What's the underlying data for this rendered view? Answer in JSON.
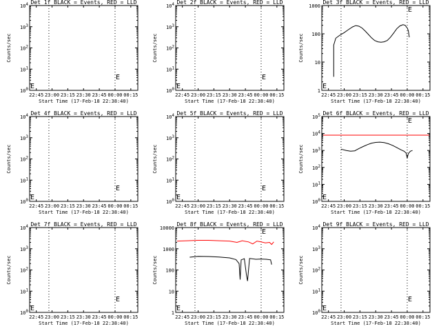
{
  "xlabel": "Start Time (17-Feb-18 22:38:40)",
  "ylabel": "Counts/sec",
  "x_ticks": [
    "22:45",
    "23:00",
    "23:15",
    "23:30",
    "23:45",
    "00:00",
    "00:15"
  ],
  "x_range": [
    "22:38:40",
    "00:21:40"
  ],
  "vlines": [
    "22:57",
    "00:00"
  ],
  "colors": {
    "events": "#000000",
    "lld": "#ff0000",
    "axes": "#000000",
    "background": "#ffffff"
  },
  "chart_data": [
    {
      "type": "line",
      "title": "Det 1f BLACK = Events, RED = LLD",
      "ylog": true,
      "ylim": [
        1,
        10000
      ],
      "y_ticks": [
        "10^0",
        "10^1",
        "10^2",
        "10^3",
        "10^4"
      ],
      "marker": "E",
      "series": []
    },
    {
      "type": "line",
      "title": "Det 2f BLACK = Events, RED = LLD",
      "ylog": true,
      "ylim": [
        1,
        10000
      ],
      "y_ticks": [
        "10^0",
        "10^1",
        "10^2",
        "10^3",
        "10^4"
      ],
      "marker": "E",
      "series": []
    },
    {
      "type": "line",
      "title": "Det 3f BLACK = Events, RED = LLD",
      "ylog": true,
      "ylim": [
        1,
        1000
      ],
      "y_ticks": [
        "1",
        "10",
        "100",
        "1000"
      ],
      "marker": "E",
      "series": [
        {
          "color": "black",
          "points": [
            [
              "22:50",
              3
            ],
            [
              "22:50",
              40
            ],
            [
              "22:52",
              70
            ],
            [
              "22:56",
              90
            ],
            [
              "23:00",
              110
            ],
            [
              "23:04",
              140
            ],
            [
              "23:08",
              175
            ],
            [
              "23:11",
              195
            ],
            [
              "23:14",
              185
            ],
            [
              "23:17",
              160
            ],
            [
              "23:20",
              125
            ],
            [
              "23:23",
              95
            ],
            [
              "23:26",
              72
            ],
            [
              "23:29",
              58
            ],
            [
              "23:32",
              52
            ],
            [
              "23:35",
              50
            ],
            [
              "23:38",
              52
            ],
            [
              "23:41",
              58
            ],
            [
              "23:44",
              75
            ],
            [
              "23:47",
              105
            ],
            [
              "23:50",
              150
            ],
            [
              "23:53",
              190
            ],
            [
              "23:56",
              210
            ],
            [
              "23:58",
              200
            ],
            [
              "00:00",
              160
            ],
            [
              "00:01",
              130
            ],
            [
              "00:02",
              75
            ]
          ]
        }
      ]
    },
    {
      "type": "line",
      "title": "Det 4f BLACK = Events, RED = LLD",
      "ylog": true,
      "ylim": [
        1,
        10000
      ],
      "y_ticks": [
        "10^0",
        "10^1",
        "10^2",
        "10^3",
        "10^4"
      ],
      "marker": "E",
      "series": []
    },
    {
      "type": "line",
      "title": "Det 5f BLACK = Events, RED = LLD",
      "ylog": true,
      "ylim": [
        1,
        10000
      ],
      "y_ticks": [
        "10^0",
        "10^1",
        "10^2",
        "10^3",
        "10^4"
      ],
      "marker": "E",
      "series": []
    },
    {
      "type": "line",
      "title": "Det 6f BLACK = Events, RED = LLD",
      "ylog": true,
      "ylim": [
        1,
        100000
      ],
      "y_ticks": [
        "10^0",
        "10^1",
        "10^2",
        "10^3",
        "10^4",
        "10^5"
      ],
      "marker": "E",
      "series": [
        {
          "color": "red",
          "points": [
            [
              "22:40",
              8000
            ],
            [
              "00:21",
              8000
            ]
          ]
        },
        {
          "color": "black",
          "points": [
            [
              "22:57",
              1200
            ],
            [
              "23:02",
              1000
            ],
            [
              "23:06",
              900
            ],
            [
              "23:10",
              950
            ],
            [
              "23:14",
              1300
            ],
            [
              "23:18",
              1700
            ],
            [
              "23:22",
              2200
            ],
            [
              "23:26",
              2700
            ],
            [
              "23:30",
              3000
            ],
            [
              "23:34",
              3100
            ],
            [
              "23:38",
              2900
            ],
            [
              "23:42",
              2500
            ],
            [
              "23:46",
              2000
            ],
            [
              "23:50",
              1500
            ],
            [
              "23:54",
              1100
            ],
            [
              "23:57",
              900
            ],
            [
              "23:59",
              700
            ],
            [
              "00:00",
              350
            ],
            [
              "00:01",
              650
            ],
            [
              "00:03",
              900
            ],
            [
              "00:05",
              1000
            ]
          ]
        }
      ]
    },
    {
      "type": "line",
      "title": "Det 7f BLACK = Events, RED = LLD",
      "ylog": true,
      "ylim": [
        1,
        10000
      ],
      "y_ticks": [
        "10^0",
        "10^1",
        "10^2",
        "10^3",
        "10^4"
      ],
      "marker": "E",
      "series": []
    },
    {
      "type": "line",
      "title": "Det 8f BLACK = Events, RED = LLD",
      "ylog": true,
      "ylim": [
        1,
        10000
      ],
      "y_ticks": [
        "1",
        "10",
        "100",
        "1000",
        "10000"
      ],
      "marker": "E",
      "series": [
        {
          "color": "red",
          "points": [
            [
              "22:40",
              2300
            ],
            [
              "22:50",
              2400
            ],
            [
              "23:00",
              2500
            ],
            [
              "23:10",
              2500
            ],
            [
              "23:20",
              2400
            ],
            [
              "23:30",
              2300
            ],
            [
              "23:37",
              2000
            ],
            [
              "23:42",
              2400
            ],
            [
              "23:48",
              2100
            ],
            [
              "23:52",
              1700
            ],
            [
              "23:56",
              2300
            ],
            [
              "00:00",
              2100
            ],
            [
              "00:04",
              1900
            ],
            [
              "00:08",
              2000
            ],
            [
              "00:10",
              1600
            ],
            [
              "00:12",
              2100
            ]
          ]
        },
        {
          "color": "black",
          "points": [
            [
              "22:52",
              400
            ],
            [
              "23:00",
              440
            ],
            [
              "23:10",
              430
            ],
            [
              "23:20",
              410
            ],
            [
              "23:30",
              370
            ],
            [
              "23:36",
              310
            ],
            [
              "23:39",
              200
            ],
            [
              "23:40",
              35
            ],
            [
              "23:41",
              300
            ],
            [
              "23:44",
              340
            ],
            [
              "23:46",
              60
            ],
            [
              "23:47",
              30
            ],
            [
              "23:49",
              350
            ],
            [
              "23:55",
              320
            ],
            [
              "00:00",
              330
            ],
            [
              "00:05",
              320
            ],
            [
              "00:09",
              300
            ],
            [
              "00:10",
              180
            ]
          ]
        }
      ]
    },
    {
      "type": "line",
      "title": "Det 9f BLACK = Events, RED = LLD",
      "ylog": true,
      "ylim": [
        1,
        10000
      ],
      "y_ticks": [
        "10^0",
        "10^1",
        "10^2",
        "10^3",
        "10^4"
      ],
      "marker": "E",
      "series": []
    }
  ]
}
